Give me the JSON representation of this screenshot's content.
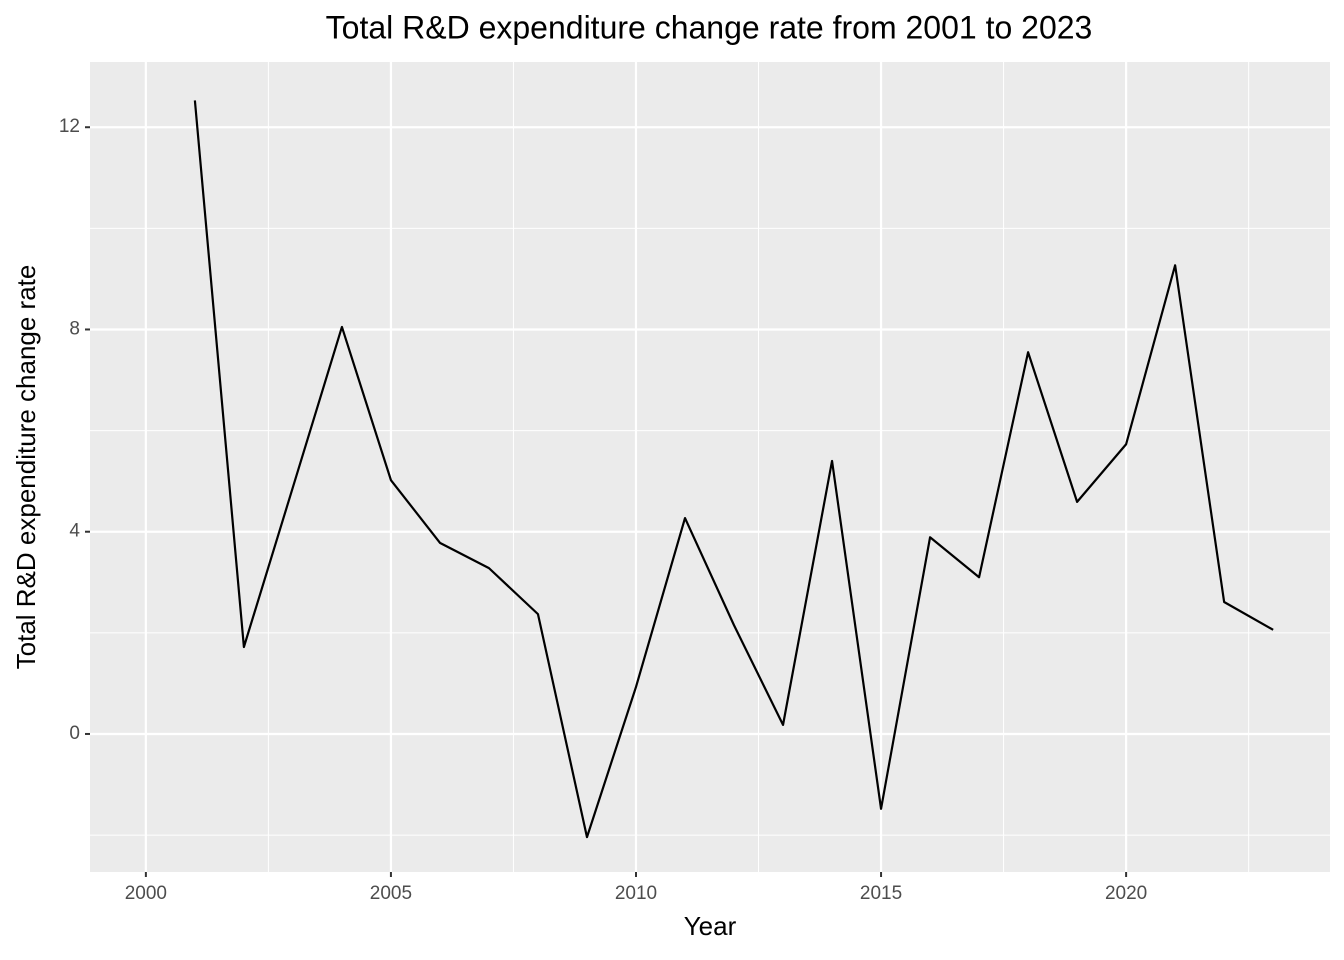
{
  "chart_data": {
    "type": "line",
    "title": "Total R&D expenditure change rate from 2001 to 2023",
    "x_label": "Year",
    "y_label": "Total R&D expenditure change rate",
    "x": [
      2001,
      2002,
      2003,
      2004,
      2005,
      2006,
      2007,
      2008,
      2009,
      2010,
      2011,
      2012,
      2013,
      2014,
      2015,
      2016,
      2017,
      2018,
      2019,
      2020,
      2021,
      2022,
      2023
    ],
    "series": [
      {
        "color": "#000000",
        "values": [
          12.53,
          1.72,
          4.88,
          8.05,
          5.02,
          3.78,
          3.28,
          2.37,
          -2.04,
          0.93,
          4.27,
          2.15,
          0.18,
          5.4,
          -1.48,
          3.89,
          3.1,
          7.55,
          4.59,
          5.73,
          9.27,
          2.61,
          2.06
        ]
      }
    ],
    "xlim": [
      1998.86,
      2024.16
    ],
    "ylim": [
      -2.73,
      13.29
    ],
    "xticks": [
      2000,
      2005,
      2010,
      2015,
      2020
    ],
    "yticks": [
      0,
      4,
      8,
      12
    ],
    "x_minor_ticks": [
      2002.5,
      2007.5,
      2012.5,
      2017.5,
      2022.5
    ],
    "y_minor_ticks": [
      -2,
      2,
      6,
      10
    ],
    "grid": true,
    "panel_color": "#ebebeb"
  }
}
